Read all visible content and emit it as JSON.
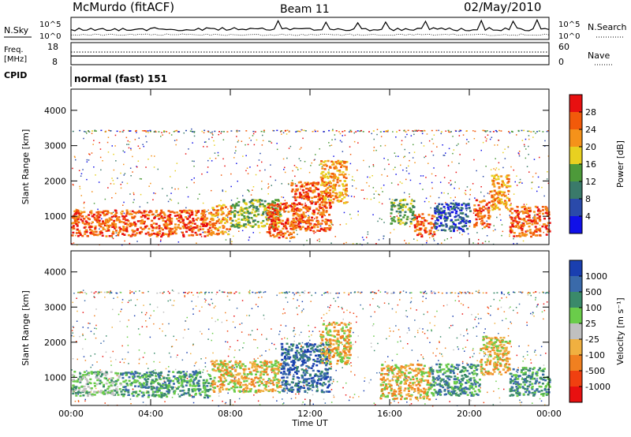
{
  "header": {
    "station": "McMurdo (fitACF)",
    "beam": "Beam 11",
    "date": "02/May/2010"
  },
  "noise_panel": {
    "left_label": "N.Sky",
    "right_label": "N.Search",
    "tick_labels": [
      "10^5",
      "10^0"
    ]
  },
  "freq_panel": {
    "left_label_line1": "Freq.",
    "left_label_line2": "[MHz]",
    "left_ticks": [
      "18",
      "8"
    ],
    "right_label": "Nave",
    "right_ticks": [
      "60",
      "0"
    ]
  },
  "cpid": {
    "label": "CPID",
    "value": "normal (fast) 151"
  },
  "chart_data": [
    {
      "type": "heatmap",
      "title": "",
      "ylabel": "Slant Range [km]",
      "xlabel": "",
      "x_ticks": [
        "00:00",
        "04:00",
        "08:00",
        "12:00",
        "16:00",
        "20:00",
        "00:00"
      ],
      "y_ticks": [
        1000,
        2000,
        3000,
        4000
      ],
      "ylim": [
        200,
        4600
      ],
      "xlim_hours": [
        0,
        24
      ],
      "colorbar": {
        "label": "Power [dB]",
        "ticks": [
          "28",
          "24",
          "20",
          "16",
          "12",
          "8",
          "4"
        ],
        "colors": [
          "#e81010",
          "#f25a0a",
          "#f5921a",
          "#e8d020",
          "#4d9a3a",
          "#3a7a6a",
          "#2a4aaa",
          "#1010e8"
        ]
      },
      "regions": [
        {
          "t0": 0.0,
          "t1": 7.0,
          "r0": 450,
          "r1": 1200,
          "level": "red"
        },
        {
          "t0": 7.0,
          "t1": 8.0,
          "r0": 500,
          "r1": 1350,
          "level": "orange"
        },
        {
          "t0": 8.0,
          "t1": 10.5,
          "r0": 700,
          "r1": 1500,
          "level": "green"
        },
        {
          "t0": 9.8,
          "t1": 11.2,
          "r0": 400,
          "r1": 1400,
          "level": "red"
        },
        {
          "t0": 11.0,
          "t1": 13.0,
          "r0": 600,
          "r1": 2000,
          "level": "red"
        },
        {
          "t0": 12.5,
          "t1": 13.8,
          "r0": 1400,
          "r1": 2600,
          "level": "orange"
        },
        {
          "t0": 16.0,
          "t1": 17.2,
          "r0": 800,
          "r1": 1500,
          "level": "green"
        },
        {
          "t0": 17.2,
          "t1": 18.2,
          "r0": 450,
          "r1": 1100,
          "level": "red"
        },
        {
          "t0": 18.2,
          "t1": 20.0,
          "r0": 600,
          "r1": 1400,
          "level": "blue"
        },
        {
          "t0": 20.2,
          "t1": 21.0,
          "r0": 700,
          "r1": 1500,
          "level": "red"
        },
        {
          "t0": 21.0,
          "t1": 22.0,
          "r0": 1200,
          "r1": 2200,
          "level": "orange"
        },
        {
          "t0": 22.0,
          "t1": 24.0,
          "r0": 450,
          "r1": 1300,
          "level": "red"
        }
      ]
    },
    {
      "type": "heatmap",
      "title": "",
      "ylabel": "Slant Range [km]",
      "xlabel": "Time UT",
      "x_ticks": [
        "00:00",
        "04:00",
        "08:00",
        "12:00",
        "16:00",
        "20:00",
        "00:00"
      ],
      "y_ticks": [
        1000,
        2000,
        3000,
        4000
      ],
      "ylim": [
        200,
        4600
      ],
      "xlim_hours": [
        0,
        24
      ],
      "colorbar": {
        "label": "Velocity [m s⁻¹]",
        "ticks": [
          "1000",
          "500",
          "100",
          "25",
          "-25",
          "-100",
          "-500",
          "-1000"
        ],
        "colors": [
          "#1a3fb0",
          "#3a6aaa",
          "#3a8a6a",
          "#6acc4a",
          "#c0c0c0",
          "#f0b040",
          "#f08020",
          "#f04010",
          "#e81010"
        ]
      },
      "regions": [
        {
          "t0": 0.0,
          "t1": 2.5,
          "r0": 500,
          "r1": 1200,
          "level": "gray"
        },
        {
          "t0": 2.5,
          "t1": 7.0,
          "r0": 450,
          "r1": 1200,
          "level": "green"
        },
        {
          "t0": 7.0,
          "t1": 10.5,
          "r0": 600,
          "r1": 1500,
          "level": "orange"
        },
        {
          "t0": 10.5,
          "t1": 13.0,
          "r0": 600,
          "r1": 2000,
          "level": "blue"
        },
        {
          "t0": 12.5,
          "t1": 14.0,
          "r0": 1400,
          "r1": 2600,
          "level": "orange"
        },
        {
          "t0": 15.5,
          "t1": 18.0,
          "r0": 400,
          "r1": 1400,
          "level": "orange"
        },
        {
          "t0": 18.0,
          "t1": 20.5,
          "r0": 500,
          "r1": 1400,
          "level": "green"
        },
        {
          "t0": 20.5,
          "t1": 22.0,
          "r0": 1100,
          "r1": 2200,
          "level": "orange"
        },
        {
          "t0": 22.0,
          "t1": 24.0,
          "r0": 500,
          "r1": 1300,
          "level": "green"
        }
      ]
    }
  ]
}
